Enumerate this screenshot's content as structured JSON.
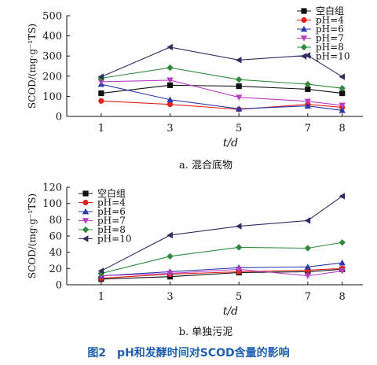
{
  "figure": {
    "caption": "图2　pH和发酵时间对SCOD含量的影响"
  },
  "colors": {
    "空白组": "#111111",
    "pH=4": "#e0241d",
    "pH=6": "#2a3aa8",
    "pH=7": "#b83fc4",
    "pH=8": "#2f8a3a",
    "pH=10": "#2e2e62",
    "caption": "#1f5fae"
  },
  "chart_data": [
    {
      "type": "line",
      "subtitle": "a. 混合底物",
      "xlabel": "t/d",
      "ylabel": "SCOD/(mg·g⁻¹TS)",
      "x": [
        1,
        3,
        5,
        7,
        8
      ],
      "xlim": [
        0,
        8.6
      ],
      "ylim": [
        0,
        500
      ],
      "yticks": [
        0,
        100,
        200,
        300,
        400,
        500
      ],
      "legend_position": "top-right",
      "series": [
        {
          "name": "空白组",
          "marker": "square",
          "values": [
            115,
            155,
            150,
            135,
            115
          ]
        },
        {
          "name": "pH=4",
          "marker": "circle",
          "values": [
            77,
            60,
            35,
            60,
            45
          ]
        },
        {
          "name": "pH=6",
          "marker": "triangle-up",
          "values": [
            160,
            83,
            38,
            52,
            30
          ]
        },
        {
          "name": "pH=7",
          "marker": "triangle-down",
          "values": [
            172,
            180,
            95,
            75,
            55
          ]
        },
        {
          "name": "pH=8",
          "marker": "diamond",
          "values": [
            190,
            242,
            183,
            160,
            140
          ]
        },
        {
          "name": "pH=10",
          "marker": "triangle-left",
          "values": [
            197,
            344,
            280,
            303,
            197
          ]
        }
      ]
    },
    {
      "type": "line",
      "subtitle": "b. 单独污泥",
      "xlabel": "t/d",
      "ylabel": "SCOD/(mg·g⁻¹TS)",
      "x": [
        1,
        3,
        5,
        7,
        8
      ],
      "xlim": [
        0,
        8.6
      ],
      "ylim": [
        0,
        120
      ],
      "yticks": [
        0,
        20,
        40,
        60,
        80,
        100,
        120
      ],
      "legend_position": "top-left",
      "series": [
        {
          "name": "空白组",
          "marker": "square",
          "values": [
            7,
            10,
            15,
            16,
            19
          ]
        },
        {
          "name": "pH=4",
          "marker": "circle",
          "values": [
            8,
            13,
            16,
            18,
            20
          ]
        },
        {
          "name": "pH=6",
          "marker": "triangle-up",
          "values": [
            11,
            16,
            21,
            22,
            27
          ]
        },
        {
          "name": "pH=7",
          "marker": "triangle-down",
          "values": [
            11,
            14,
            19,
            11,
            17
          ]
        },
        {
          "name": "pH=8",
          "marker": "diamond",
          "values": [
            14,
            35,
            46,
            45,
            52
          ]
        },
        {
          "name": "pH=10",
          "marker": "triangle-left",
          "values": [
            17,
            61,
            72,
            79,
            109
          ]
        }
      ]
    }
  ]
}
